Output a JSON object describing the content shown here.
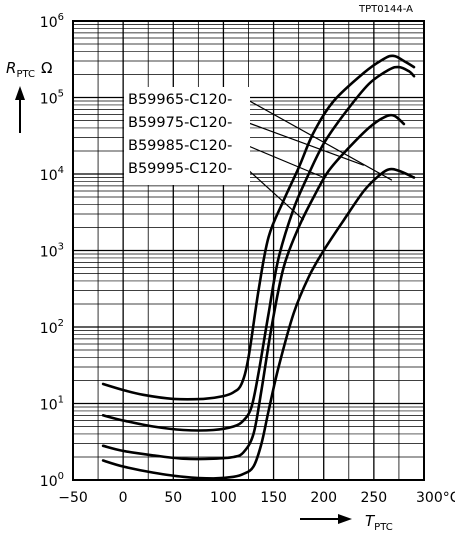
{
  "chart_data": {
    "type": "line",
    "doc_code": "TPT0144-A",
    "y_axis": {
      "symbol": "R",
      "subscript": "PTC",
      "unit": "Ω",
      "scale": "log",
      "ylim": [
        1,
        1000000
      ],
      "tick_values": [
        1,
        10,
        100,
        1000,
        10000,
        100000,
        1000000
      ],
      "tick_labels": [
        {
          "base": "10",
          "exp": "0"
        },
        {
          "base": "10",
          "exp": "1"
        },
        {
          "base": "10",
          "exp": "2"
        },
        {
          "base": "10",
          "exp": "3"
        },
        {
          "base": "10",
          "exp": "4"
        },
        {
          "base": "10",
          "exp": "5"
        },
        {
          "base": "10",
          "exp": "6"
        }
      ]
    },
    "x_axis": {
      "symbol": "T",
      "subscript": "PTC",
      "scale": "linear",
      "xlim": [
        -50,
        300
      ],
      "tick_values": [
        -50,
        0,
        50,
        100,
        150,
        200,
        250,
        300
      ],
      "tick_labels": [
        "−50",
        "0",
        "50",
        "100",
        "150",
        "200",
        "250",
        "300"
      ],
      "unit_suffix": "°C"
    },
    "grid": true,
    "legend_position": "upper-left, leader lines to curves",
    "series": [
      {
        "name": "B59965-C120-",
        "color": "#000000",
        "x": [
          -20,
          0,
          20,
          50,
          80,
          100,
          110,
          118,
          125,
          135,
          145,
          160,
          175,
          190,
          210,
          240,
          260,
          270,
          280,
          290
        ],
        "y": [
          18,
          15,
          13,
          11.5,
          11.5,
          12.5,
          14,
          18,
          40,
          300,
          1500,
          4500,
          12000,
          35000,
          90000,
          210000,
          320000,
          350000,
          300000,
          250000
        ]
      },
      {
        "name": "B59975-C120-",
        "color": "#000000",
        "x": [
          -20,
          0,
          30,
          60,
          90,
          110,
          120,
          128,
          135,
          145,
          155,
          170,
          185,
          200,
          220,
          245,
          265,
          275,
          285,
          290
        ],
        "y": [
          7,
          6,
          5,
          4.5,
          4.5,
          5,
          6,
          9,
          25,
          150,
          800,
          3500,
          10000,
          25000,
          60000,
          150000,
          230000,
          250000,
          220000,
          190000
        ]
      },
      {
        "name": "B59985-C120-",
        "color": "#000000",
        "x": [
          -20,
          0,
          30,
          60,
          90,
          110,
          120,
          130,
          138,
          148,
          160,
          175,
          190,
          205,
          225,
          245,
          260,
          270,
          280
        ],
        "y": [
          2.8,
          2.4,
          2.1,
          1.9,
          1.9,
          2,
          2.3,
          4,
          15,
          100,
          600,
          2000,
          5000,
          11000,
          22000,
          40000,
          55000,
          58000,
          45000
        ]
      },
      {
        "name": "B59995-C120-",
        "color": "#000000",
        "x": [
          -20,
          0,
          30,
          60,
          90,
          110,
          120,
          130,
          138,
          145,
          155,
          170,
          185,
          200,
          220,
          240,
          255,
          265,
          275,
          290
        ],
        "y": [
          1.8,
          1.5,
          1.25,
          1.1,
          1.05,
          1.1,
          1.2,
          1.5,
          3,
          8,
          30,
          150,
          450,
          1000,
          2500,
          6000,
          9500,
          11500,
          11000,
          9000
        ]
      }
    ]
  }
}
